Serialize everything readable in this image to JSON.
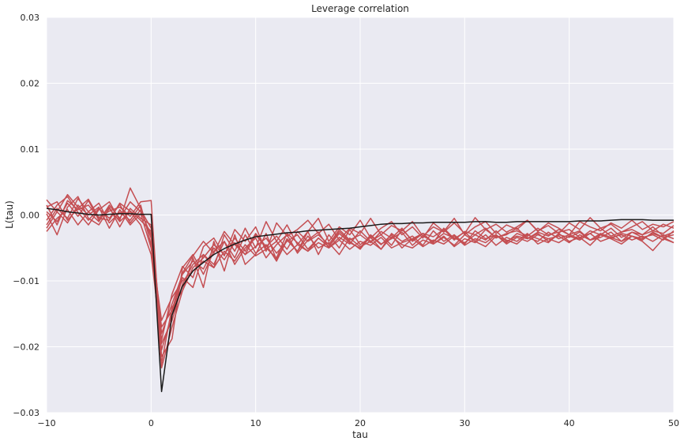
{
  "chart_data": {
    "type": "line",
    "title": "Leverage correlation",
    "xlabel": "tau",
    "ylabel": "L(tau)",
    "xlim": [
      -10,
      50
    ],
    "ylim": [
      -0.03,
      0.03
    ],
    "xticks": [
      -10,
      0,
      10,
      20,
      30,
      40,
      50
    ],
    "yticks": [
      -0.03,
      -0.02,
      -0.01,
      0.0,
      0.01,
      0.02,
      0.03
    ],
    "xtick_labels": [
      "−10",
      "0",
      "10",
      "20",
      "30",
      "40",
      "50"
    ],
    "ytick_labels": [
      "−0.03",
      "−0.02",
      "−0.01",
      "0.00",
      "0.01",
      "0.02",
      "0.03"
    ],
    "grid": true,
    "colors": {
      "background": "#eaeaf2",
      "grid": "#ffffff",
      "reference": "#1a1a1a",
      "samples": "#c44e52"
    },
    "x": [
      -10,
      -9,
      -8,
      -7,
      -6,
      -5,
      -4,
      -3,
      -2,
      -1,
      0,
      1,
      2,
      3,
      4,
      5,
      6,
      7,
      8,
      9,
      10,
      11,
      12,
      13,
      14,
      15,
      16,
      17,
      18,
      19,
      20,
      21,
      22,
      23,
      24,
      25,
      26,
      27,
      28,
      29,
      30,
      31,
      32,
      33,
      34,
      35,
      36,
      37,
      38,
      39,
      40,
      41,
      42,
      43,
      44,
      45,
      46,
      47,
      48,
      49,
      50
    ],
    "series": [
      {
        "color": "#1a1a1a",
        "values": [
          0.001,
          0.0008,
          0.0005,
          0.0003,
          0.0001,
          0.0,
          0.0001,
          0.0002,
          0.0002,
          0.0001,
          0.0001,
          -0.0268,
          -0.0152,
          -0.0108,
          -0.0085,
          -0.0072,
          -0.006,
          -0.0051,
          -0.0044,
          -0.0038,
          -0.0033,
          -0.0031,
          -0.0029,
          -0.0027,
          -0.0026,
          -0.0024,
          -0.0023,
          -0.0022,
          -0.0021,
          -0.002,
          -0.0018,
          -0.0016,
          -0.0014,
          -0.0013,
          -0.0013,
          -0.0012,
          -0.0012,
          -0.0011,
          -0.0011,
          -0.0011,
          -0.0011,
          -0.001,
          -0.001,
          -0.0011,
          -0.0011,
          -0.001,
          -0.001,
          -0.001,
          -0.001,
          -0.001,
          -0.001,
          -0.0009,
          -0.0009,
          -0.0009,
          -0.0008,
          -0.0007,
          -0.0007,
          -0.0007,
          -0.0008,
          -0.0008,
          -0.0008
        ]
      },
      {
        "color": "#c44e52",
        "values": [
          0.0023,
          0.0005,
          0.0031,
          0.0012,
          -0.0008,
          0.001,
          -0.0005,
          0.0016,
          -0.0012,
          0.0008,
          -0.002,
          -0.0232,
          -0.017,
          -0.0115,
          -0.008,
          -0.0065,
          -0.0045,
          -0.006,
          -0.0035,
          -0.0055,
          -0.0028,
          -0.0048,
          -0.0032,
          -0.0052,
          -0.0025,
          -0.004,
          -0.003,
          -0.0045,
          -0.0022,
          -0.0038,
          -0.003,
          -0.0042,
          -0.0025,
          -0.0035,
          -0.002,
          -0.004,
          -0.0028,
          -0.0033,
          -0.0022,
          -0.0038,
          -0.0025,
          -0.003,
          -0.002,
          -0.0035,
          -0.0028,
          -0.0024,
          -0.0032,
          -0.002,
          -0.003,
          -0.0026,
          -0.0022,
          -0.0034,
          -0.0028,
          -0.002,
          -0.0032,
          -0.0026,
          -0.0022,
          -0.003,
          -0.0024,
          -0.0028,
          -0.0016
        ]
      },
      {
        "color": "#c44e52",
        "values": [
          -0.0015,
          0.001,
          -0.0005,
          0.0025,
          0.0005,
          -0.001,
          0.0015,
          -0.0005,
          0.002,
          0.0005,
          -0.003,
          -0.0205,
          -0.015,
          -0.0095,
          -0.011,
          -0.006,
          -0.0075,
          -0.004,
          -0.0065,
          -0.003,
          -0.0058,
          -0.0045,
          -0.007,
          -0.0038,
          -0.0055,
          -0.0032,
          -0.005,
          -0.0042,
          -0.006,
          -0.0035,
          -0.0048,
          -0.004,
          -0.0052,
          -0.0033,
          -0.0045,
          -0.005,
          -0.0038,
          -0.0044,
          -0.0032,
          -0.0048,
          -0.0036,
          -0.0042,
          -0.003,
          -0.0046,
          -0.0034,
          -0.004,
          -0.0028,
          -0.0044,
          -0.0036,
          -0.0032,
          -0.0042,
          -0.003,
          -0.0038,
          -0.0034,
          -0.0026,
          -0.004,
          -0.0032,
          -0.0036,
          -0.0028,
          -0.0034,
          -0.003
        ]
      },
      {
        "color": "#c44e52",
        "values": [
          0.0005,
          -0.001,
          0.0018,
          -0.0002,
          0.0022,
          -0.0008,
          0.0012,
          -0.0018,
          0.001,
          -0.0005,
          -0.0015,
          -0.018,
          -0.0135,
          -0.009,
          -0.007,
          -0.0082,
          -0.005,
          -0.0068,
          -0.0042,
          -0.006,
          -0.0048,
          -0.0035,
          -0.0058,
          -0.004,
          -0.003,
          -0.0052,
          -0.0035,
          -0.0048,
          -0.0028,
          -0.0042,
          -0.005,
          -0.003,
          -0.0044,
          -0.0036,
          -0.0026,
          -0.0046,
          -0.0032,
          -0.004,
          -0.0028,
          -0.0035,
          -0.0042,
          -0.003,
          -0.0038,
          -0.0024,
          -0.004,
          -0.0032,
          -0.0036,
          -0.0028,
          -0.004,
          -0.003,
          -0.0034,
          -0.0026,
          -0.0038,
          -0.003,
          -0.0036,
          -0.0028,
          -0.0032,
          -0.0038,
          -0.0026,
          -0.0034,
          -0.0042
        ]
      },
      {
        "color": "#c44e52",
        "values": [
          -0.0025,
          -0.0005,
          0.0008,
          -0.0015,
          0.0005,
          0.0018,
          -0.0012,
          0.0004,
          -0.0008,
          0.0015,
          -0.0045,
          -0.016,
          -0.0125,
          -0.01,
          -0.0085,
          -0.007,
          -0.008,
          -0.0055,
          -0.007,
          -0.0045,
          -0.0062,
          -0.0052,
          -0.004,
          -0.006,
          -0.0045,
          -0.0055,
          -0.0042,
          -0.005,
          -0.0038,
          -0.0052,
          -0.004,
          -0.0046,
          -0.0034,
          -0.005,
          -0.0042,
          -0.0036,
          -0.0048,
          -0.0038,
          -0.0044,
          -0.0032,
          -0.0046,
          -0.0036,
          -0.0042,
          -0.003,
          -0.0044,
          -0.0034,
          -0.004,
          -0.003,
          -0.0036,
          -0.0042,
          -0.0032,
          -0.0038,
          -0.0028,
          -0.004,
          -0.0034,
          -0.003,
          -0.0038,
          -0.0032,
          -0.004,
          -0.003,
          -0.0036
        ]
      },
      {
        "color": "#c44e52",
        "values": [
          0.0012,
          0.002,
          -0.0008,
          0.001,
          0.0024,
          -0.0004,
          0.0006,
          0.0012,
          -0.0002,
          0.002,
          0.0022,
          -0.0215,
          -0.0188,
          -0.008,
          -0.006,
          -0.009,
          -0.0055,
          -0.004,
          -0.0075,
          -0.005,
          -0.0035,
          -0.0065,
          -0.0045,
          -0.003,
          -0.0058,
          -0.0038,
          -0.0026,
          -0.005,
          -0.0034,
          -0.0044,
          -0.0024,
          -0.004,
          -0.003,
          -0.0046,
          -0.0022,
          -0.0038,
          -0.0028,
          -0.0042,
          -0.002,
          -0.0036,
          -0.0026,
          -0.004,
          -0.0022,
          -0.0034,
          -0.003,
          -0.002,
          -0.0036,
          -0.0026,
          -0.0032,
          -0.0022,
          -0.003,
          -0.0036,
          -0.0024,
          -0.003,
          -0.002,
          -0.0034,
          -0.0026,
          -0.003,
          -0.0018,
          -0.0032,
          -0.0026
        ]
      },
      {
        "color": "#c44e52",
        "values": [
          -0.0008,
          0.0015,
          0.0028,
          0.0004,
          -0.0015,
          0.0008,
          0.002,
          -0.0008,
          0.0041,
          0.001,
          -0.0035,
          -0.0225,
          -0.014,
          -0.0115,
          -0.0065,
          -0.011,
          -0.004,
          -0.0085,
          -0.003,
          -0.0075,
          -0.006,
          -0.0028,
          -0.0068,
          -0.0036,
          -0.0055,
          -0.0025,
          -0.006,
          -0.003,
          -0.005,
          -0.0022,
          -0.0045,
          -0.0034,
          -0.0052,
          -0.0028,
          -0.004,
          -0.0032,
          -0.0046,
          -0.0024,
          -0.004,
          -0.003,
          -0.0044,
          -0.0024,
          -0.0036,
          -0.003,
          -0.0042,
          -0.0028,
          -0.0034,
          -0.004,
          -0.0026,
          -0.0036,
          -0.003,
          -0.0024,
          -0.0038,
          -0.0028,
          -0.0034,
          -0.004,
          -0.0026,
          -0.0034,
          -0.003,
          -0.0038,
          -0.0024
        ]
      },
      {
        "color": "#c44e52",
        "values": [
          0.0002,
          -0.003,
          0.0012,
          0.0028,
          -0.0005,
          -0.0015,
          0.001,
          -0.001,
          0.0005,
          -0.0015,
          -0.006,
          -0.0195,
          -0.016,
          -0.0105,
          -0.0075,
          -0.006,
          -0.008,
          -0.003,
          -0.0055,
          -0.002,
          -0.005,
          -0.001,
          -0.004,
          -0.0015,
          -0.0045,
          -0.0025,
          -0.0005,
          -0.004,
          -0.0018,
          -0.003,
          -0.0008,
          -0.0035,
          -0.002,
          -0.001,
          -0.003,
          -0.0018,
          -0.0035,
          -0.0012,
          -0.0025,
          -0.0005,
          -0.003,
          -0.0018,
          -0.001,
          -0.0028,
          -0.0015,
          -0.0022,
          -0.0008,
          -0.0025,
          -0.0012,
          -0.002,
          -0.003,
          -0.001,
          -0.0018,
          -0.0024,
          -0.0012,
          -0.002,
          -0.0008,
          -0.0022,
          -0.0014,
          -0.0018,
          -0.001
        ]
      },
      {
        "color": "#c44e52",
        "values": [
          -0.002,
          0.0005,
          -0.0012,
          0.0015,
          0.0,
          0.0012,
          -0.002,
          0.0008,
          -0.0015,
          0.0002,
          -0.005,
          -0.017,
          -0.0145,
          -0.0088,
          -0.0062,
          -0.004,
          -0.0058,
          -0.0025,
          -0.0045,
          -0.006,
          -0.003,
          -0.005,
          -0.0065,
          -0.0028,
          -0.0042,
          -0.0055,
          -0.0035,
          -0.0048,
          -0.0025,
          -0.004,
          -0.0052,
          -0.0032,
          -0.0045,
          -0.003,
          -0.005,
          -0.0036,
          -0.0028,
          -0.0044,
          -0.0034,
          -0.0046,
          -0.003,
          -0.004,
          -0.0048,
          -0.0032,
          -0.0038,
          -0.0044,
          -0.003,
          -0.0036,
          -0.0042,
          -0.0028,
          -0.004,
          -0.0034,
          -0.0046,
          -0.003,
          -0.0036,
          -0.0044,
          -0.0032,
          -0.004,
          -0.0054,
          -0.0036,
          -0.0042
        ]
      },
      {
        "color": "#c44e52",
        "values": [
          0.0015,
          -0.0015,
          0.0022,
          0.0008,
          0.0015,
          -0.0005,
          -0.0008,
          0.0018,
          0.0006,
          -0.0008,
          -0.0025,
          -0.019,
          -0.012,
          -0.0078,
          -0.0095,
          -0.0048,
          -0.0035,
          -0.0062,
          -0.0022,
          -0.004,
          -0.0018,
          -0.0055,
          -0.0012,
          -0.0032,
          -0.0022,
          -0.0008,
          -0.0028,
          -0.0014,
          -0.0038,
          -0.002,
          -0.0028,
          -0.0005,
          -0.003,
          -0.0016,
          -0.0024,
          -0.001,
          -0.0032,
          -0.0018,
          -0.0026,
          -0.0012,
          -0.0028,
          -0.0004,
          -0.0022,
          -0.0014,
          -0.0026,
          -0.0018,
          -0.0008,
          -0.0024,
          -0.0016,
          -0.0028,
          -0.0012,
          -0.0022,
          -0.0004,
          -0.002,
          -0.0014,
          -0.0026,
          -0.0018,
          -0.001,
          -0.0024,
          -0.0014,
          -0.002
        ]
      }
    ]
  }
}
